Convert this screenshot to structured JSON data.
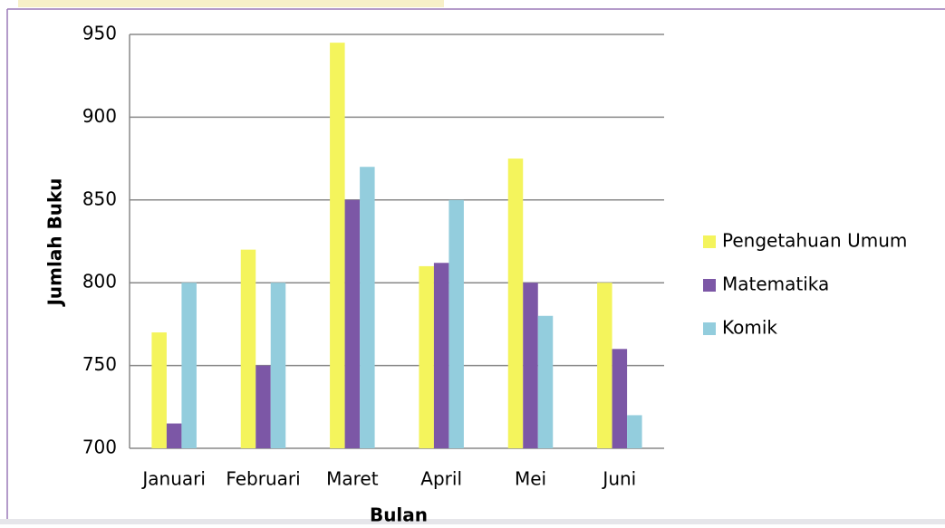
{
  "chart_data": {
    "type": "bar",
    "x_label": "Bulan",
    "y_label": "Jumlah Buku",
    "categories": [
      "Januari",
      "Februari",
      "Maret",
      "April",
      "Mei",
      "Juni"
    ],
    "series": [
      {
        "name": "Pengetahuan Umum",
        "color": "#f4f45c",
        "values": [
          770,
          820,
          945,
          810,
          875,
          800
        ]
      },
      {
        "name": "Matematika",
        "color": "#7c57a6",
        "values": [
          715,
          750,
          850,
          812,
          800,
          760
        ]
      },
      {
        "name": "Komik",
        "color": "#93cddd",
        "values": [
          800,
          800,
          870,
          850,
          780,
          720
        ]
      }
    ],
    "ylim": [
      700,
      950
    ],
    "yticks": [
      700,
      750,
      800,
      850,
      900,
      950
    ],
    "grid": true,
    "legend": "right"
  }
}
